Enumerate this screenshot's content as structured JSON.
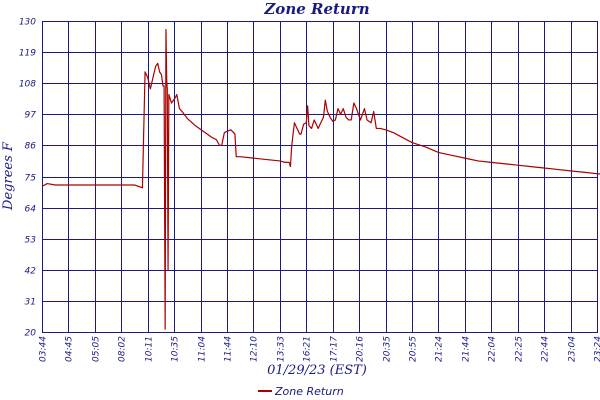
{
  "chart_data": {
    "type": "line",
    "title": "Zone Return",
    "xlabel": "01/29/23 (EST)",
    "ylabel": "Degrees F",
    "ylim": [
      20,
      130
    ],
    "y_ticks": [
      "130",
      "119",
      "108",
      "97",
      "86",
      "75",
      "64",
      "53",
      "42",
      "31",
      "20"
    ],
    "x_ticks": [
      "03:44",
      "04:45",
      "05:05",
      "08:02",
      "10:11",
      "10:35",
      "11:04",
      "11:44",
      "12:10",
      "13:33",
      "16:21",
      "17:17",
      "20:16",
      "20:35",
      "20:55",
      "21:24",
      "21:44",
      "22:04",
      "22:25",
      "22:44",
      "23:04",
      "23:24"
    ],
    "grid": true,
    "legend_position": "bottom-center",
    "colors": {
      "series": "#aa0000",
      "axis": "#1a1a80",
      "grid": "#1a1a80"
    },
    "series": [
      {
        "name": "Zone Return",
        "points": [
          [
            0,
            71.5
          ],
          [
            0.2,
            72.5
          ],
          [
            0.5,
            72
          ],
          [
            1,
            72
          ],
          [
            1.5,
            72
          ],
          [
            2,
            72
          ],
          [
            2.5,
            72
          ],
          [
            3,
            72
          ],
          [
            3.5,
            72
          ],
          [
            3.8,
            71
          ],
          [
            3.9,
            112
          ],
          [
            4.0,
            110
          ],
          [
            4.1,
            106
          ],
          [
            4.2,
            110
          ],
          [
            4.3,
            114
          ],
          [
            4.38,
            115
          ],
          [
            4.45,
            112
          ],
          [
            4.52,
            111
          ],
          [
            4.58,
            107
          ],
          [
            4.62,
            107
          ],
          [
            4.66,
            21
          ],
          [
            4.69,
            127
          ],
          [
            4.72,
            109
          ],
          [
            4.74,
            106
          ],
          [
            4.77,
            42
          ],
          [
            4.8,
            104
          ],
          [
            4.9,
            101
          ],
          [
            5.05,
            103
          ],
          [
            5.1,
            104
          ],
          [
            5.2,
            99
          ],
          [
            5.3,
            98
          ],
          [
            5.5,
            95.5
          ],
          [
            5.8,
            93
          ],
          [
            6.1,
            91
          ],
          [
            6.4,
            89
          ],
          [
            6.6,
            88
          ],
          [
            6.72,
            86
          ],
          [
            6.8,
            86
          ],
          [
            6.9,
            90.5
          ],
          [
            7.0,
            91
          ],
          [
            7.15,
            91.5
          ],
          [
            7.3,
            90
          ],
          [
            7.35,
            82
          ],
          [
            7.5,
            82
          ],
          [
            8.0,
            81.5
          ],
          [
            8.5,
            81
          ],
          [
            9.0,
            80.5
          ],
          [
            9.2,
            80
          ],
          [
            9.35,
            80
          ],
          [
            9.4,
            78.5
          ],
          [
            9.45,
            86
          ],
          [
            9.55,
            94
          ],
          [
            9.65,
            92
          ],
          [
            9.75,
            90
          ],
          [
            9.8,
            90
          ],
          [
            9.9,
            93.5
          ],
          [
            10.0,
            94
          ],
          [
            10.05,
            100
          ],
          [
            10.1,
            93
          ],
          [
            10.2,
            92
          ],
          [
            10.3,
            95
          ],
          [
            10.45,
            92
          ],
          [
            10.55,
            94
          ],
          [
            10.65,
            96
          ],
          [
            10.72,
            102
          ],
          [
            10.8,
            98
          ],
          [
            10.9,
            96
          ],
          [
            11.0,
            94.5
          ],
          [
            11.1,
            95
          ],
          [
            11.2,
            99
          ],
          [
            11.3,
            97
          ],
          [
            11.4,
            99
          ],
          [
            11.5,
            96
          ],
          [
            11.6,
            95
          ],
          [
            11.7,
            95
          ],
          [
            11.8,
            101
          ],
          [
            11.9,
            99
          ],
          [
            12.05,
            95
          ],
          [
            12.2,
            99
          ],
          [
            12.3,
            95
          ],
          [
            12.45,
            94
          ],
          [
            12.55,
            98
          ],
          [
            12.65,
            92
          ],
          [
            12.8,
            92
          ],
          [
            13.0,
            91.5
          ],
          [
            13.3,
            90.5
          ],
          [
            13.6,
            89
          ],
          [
            14.0,
            87
          ],
          [
            14.5,
            85.5
          ],
          [
            15.0,
            83.5
          ],
          [
            15.5,
            82.5
          ],
          [
            16.0,
            81.5
          ],
          [
            16.5,
            80.5
          ],
          [
            17.0,
            80
          ],
          [
            17.5,
            79.5
          ],
          [
            18.0,
            79
          ],
          [
            18.5,
            78.5
          ],
          [
            19.0,
            78
          ],
          [
            19.5,
            77.5
          ],
          [
            20.0,
            77
          ],
          [
            20.5,
            76.5
          ],
          [
            21.0,
            76
          ],
          [
            21.5,
            75.5
          ],
          [
            22.0,
            75.5
          ]
        ]
      }
    ]
  }
}
